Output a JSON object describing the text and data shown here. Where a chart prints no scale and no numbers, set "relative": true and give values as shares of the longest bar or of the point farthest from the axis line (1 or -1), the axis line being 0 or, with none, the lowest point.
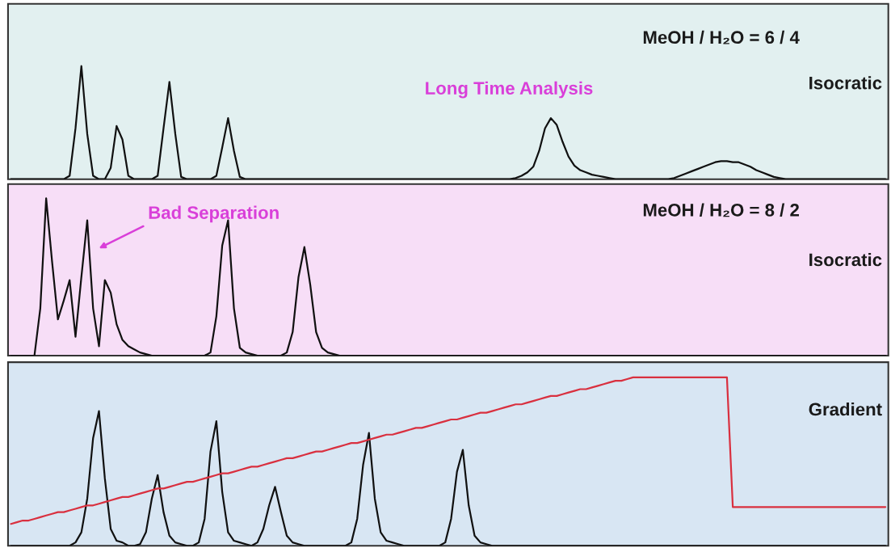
{
  "chart_data": [
    {
      "type": "line",
      "relative": true,
      "categories": [
        null,
        null,
        null,
        null,
        null,
        null,
        null,
        null,
        null,
        null,
        null,
        null,
        null,
        null,
        null,
        null,
        null,
        null,
        null,
        null,
        null,
        null,
        null,
        null,
        null,
        null,
        null,
        null,
        null,
        null,
        null,
        null,
        null,
        null,
        null,
        null,
        null,
        null,
        null,
        null,
        null,
        null,
        null,
        null,
        null,
        null,
        null,
        null,
        null,
        null,
        null,
        null,
        null,
        null,
        null,
        null,
        null,
        null,
        null,
        null,
        null,
        null,
        null,
        null,
        null,
        null,
        null,
        null,
        null,
        null,
        null,
        null,
        null,
        null,
        null,
        null,
        null,
        null,
        null,
        null,
        null,
        null,
        null,
        null,
        null,
        null,
        null,
        null,
        null,
        null,
        null,
        null,
        null,
        null,
        null,
        null,
        null,
        null,
        null,
        null,
        null,
        null,
        null,
        null,
        null,
        null,
        null,
        null,
        null,
        null,
        null,
        null,
        null,
        null,
        null,
        null,
        null,
        null,
        null,
        null,
        null,
        null,
        null,
        null,
        null,
        null,
        null,
        null,
        null,
        null,
        null,
        null,
        null,
        null,
        null,
        null,
        null,
        null,
        null,
        null,
        null,
        null,
        null,
        null,
        null,
        null,
        null,
        null,
        null,
        null
      ],
      "annotations": [
        "MeOH / H₂O = 6 / 4",
        "Long Time Analysis",
        "Isocratic"
      ],
      "series": [
        {
          "color": "#111111",
          "values": [
            0,
            0,
            0,
            0,
            0,
            0,
            0,
            0,
            0,
            0,
            0.03,
            0.45,
            1.0,
            0.4,
            0.03,
            0,
            0,
            0.1,
            0.47,
            0.35,
            0.03,
            0,
            0,
            0,
            0,
            0.03,
            0.45,
            0.86,
            0.4,
            0.02,
            0,
            0,
            0,
            0,
            0,
            0.03,
            0.28,
            0.54,
            0.25,
            0.02,
            0,
            0,
            0,
            0,
            0,
            0,
            0,
            0,
            0,
            0,
            0,
            0,
            0,
            0,
            0,
            0,
            0,
            0,
            0,
            0,
            0,
            0,
            0,
            0,
            0,
            0,
            0,
            0,
            0,
            0,
            0,
            0,
            0,
            0,
            0,
            0,
            0,
            0,
            0,
            0,
            0,
            0,
            0,
            0,
            0,
            0,
            0.01,
            0.03,
            0.06,
            0.11,
            0.25,
            0.45,
            0.54,
            0.48,
            0.33,
            0.2,
            0.12,
            0.08,
            0.06,
            0.04,
            0.03,
            0.02,
            0.01,
            0,
            0,
            0,
            0,
            0,
            0,
            0,
            0,
            0,
            0,
            0.01,
            0.03,
            0.05,
            0.07,
            0.09,
            0.11,
            0.13,
            0.15,
            0.16,
            0.16,
            0.15,
            0.15,
            0.13,
            0.11,
            0.08,
            0.06,
            0.04,
            0.02,
            0.01,
            0,
            0,
            0,
            0,
            0,
            0,
            0,
            0,
            0,
            0,
            0,
            0,
            0,
            0,
            0,
            0,
            0,
            0
          ]
        }
      ]
    },
    {
      "type": "line",
      "relative": true,
      "categories": [
        null,
        null,
        null,
        null,
        null,
        null,
        null,
        null,
        null,
        null,
        null,
        null,
        null,
        null,
        null,
        null,
        null,
        null,
        null,
        null,
        null,
        null,
        null,
        null,
        null,
        null,
        null,
        null,
        null,
        null,
        null,
        null,
        null,
        null,
        null,
        null,
        null,
        null,
        null,
        null,
        null,
        null,
        null,
        null,
        null,
        null,
        null,
        null,
        null,
        null,
        null,
        null,
        null,
        null,
        null,
        null,
        null,
        null,
        null,
        null,
        null,
        null,
        null,
        null,
        null,
        null,
        null,
        null,
        null,
        null,
        null,
        null,
        null,
        null,
        null,
        null,
        null,
        null,
        null,
        null,
        null,
        null,
        null,
        null,
        null,
        null,
        null,
        null,
        null,
        null,
        null,
        null,
        null,
        null,
        null,
        null,
        null,
        null,
        null,
        null,
        null,
        null,
        null,
        null,
        null,
        null,
        null,
        null,
        null,
        null,
        null,
        null,
        null,
        null,
        null,
        null,
        null,
        null,
        null,
        null,
        null,
        null,
        null,
        null,
        null,
        null,
        null,
        null,
        null,
        null,
        null,
        null,
        null,
        null,
        null,
        null,
        null,
        null,
        null,
        null,
        null,
        null,
        null,
        null,
        null,
        null,
        null,
        null,
        null,
        null
      ],
      "annotations": [
        "Bad Separation",
        "MeOH / H₂O = 8 / 2",
        "Isocratic"
      ],
      "series": [
        {
          "color": "#111111",
          "values": [
            0,
            0,
            0,
            0,
            0,
            0.3,
            1.0,
            0.6,
            0.23,
            0.35,
            0.48,
            0.12,
            0.5,
            0.86,
            0.3,
            0.06,
            0.48,
            0.4,
            0.2,
            0.1,
            0.06,
            0.04,
            0.02,
            0.01,
            0,
            0,
            0,
            0,
            0,
            0,
            0,
            0,
            0,
            0,
            0.02,
            0.25,
            0.7,
            0.86,
            0.3,
            0.05,
            0.02,
            0.01,
            0,
            0,
            0,
            0,
            0,
            0.02,
            0.15,
            0.5,
            0.69,
            0.45,
            0.15,
            0.05,
            0.02,
            0.01,
            0,
            0,
            0,
            0,
            0,
            0,
            0,
            0,
            0,
            0,
            0,
            0,
            0,
            0,
            0,
            0,
            0,
            0,
            0,
            0,
            0,
            0,
            0,
            0,
            0,
            0,
            0,
            0,
            0,
            0,
            0,
            0,
            0,
            0,
            0,
            0,
            0,
            0,
            0,
            0,
            0,
            0,
            0,
            0,
            0,
            0,
            0,
            0,
            0,
            0,
            0,
            0,
            0,
            0,
            0,
            0,
            0,
            0,
            0,
            0,
            0,
            0,
            0,
            0,
            0,
            0,
            0,
            0,
            0,
            0,
            0,
            0,
            0,
            0,
            0,
            0,
            0,
            0,
            0,
            0,
            0,
            0,
            0,
            0,
            0,
            0,
            0,
            0,
            0,
            0,
            0,
            0,
            0,
            0
          ]
        }
      ]
    },
    {
      "type": "line",
      "relative": true,
      "categories": [
        null,
        null,
        null,
        null,
        null,
        null,
        null,
        null,
        null,
        null,
        null,
        null,
        null,
        null,
        null,
        null,
        null,
        null,
        null,
        null,
        null,
        null,
        null,
        null,
        null,
        null,
        null,
        null,
        null,
        null,
        null,
        null,
        null,
        null,
        null,
        null,
        null,
        null,
        null,
        null,
        null,
        null,
        null,
        null,
        null,
        null,
        null,
        null,
        null,
        null,
        null,
        null,
        null,
        null,
        null,
        null,
        null,
        null,
        null,
        null,
        null,
        null,
        null,
        null,
        null,
        null,
        null,
        null,
        null,
        null,
        null,
        null,
        null,
        null,
        null,
        null,
        null,
        null,
        null,
        null,
        null,
        null,
        null,
        null,
        null,
        null,
        null,
        null,
        null,
        null,
        null,
        null,
        null,
        null,
        null,
        null,
        null,
        null,
        null,
        null,
        null,
        null,
        null,
        null,
        null,
        null,
        null,
        null,
        null,
        null,
        null,
        null,
        null,
        null,
        null,
        null,
        null,
        null,
        null,
        null,
        null,
        null,
        null,
        null,
        null,
        null,
        null,
        null,
        null,
        null,
        null,
        null,
        null,
        null,
        null,
        null,
        null,
        null,
        null,
        null,
        null,
        null,
        null,
        null,
        null,
        null,
        null,
        null,
        null,
        null
      ],
      "annotations": [
        "Gradient"
      ],
      "series": [
        {
          "color": "#111111",
          "values": [
            0,
            0,
            0,
            0,
            0,
            0,
            0,
            0,
            0,
            0,
            0,
            0.02,
            0.08,
            0.28,
            0.64,
            0.8,
            0.4,
            0.1,
            0.03,
            0.02,
            0,
            0,
            0.01,
            0.08,
            0.28,
            0.42,
            0.2,
            0.06,
            0.02,
            0.01,
            0,
            0,
            0.02,
            0.16,
            0.56,
            0.74,
            0.32,
            0.08,
            0.03,
            0.02,
            0.01,
            0,
            0.02,
            0.1,
            0.24,
            0.35,
            0.2,
            0.06,
            0.02,
            0.01,
            0,
            0,
            0,
            0,
            0,
            0,
            0,
            0,
            0.02,
            0.16,
            0.48,
            0.67,
            0.28,
            0.08,
            0.03,
            0.02,
            0.01,
            0,
            0,
            0,
            0,
            0,
            0,
            0,
            0.02,
            0.16,
            0.44,
            0.57,
            0.24,
            0.06,
            0.02,
            0.01,
            0,
            0,
            0,
            0,
            0,
            0,
            0,
            0,
            0,
            0,
            0,
            0,
            0,
            0,
            0,
            0,
            0,
            0,
            0,
            0,
            0,
            0,
            0,
            0,
            0,
            0,
            0,
            0,
            0,
            0,
            0,
            0,
            0,
            0,
            0,
            0,
            0,
            0,
            0,
            0,
            0,
            0,
            0,
            0,
            0,
            0,
            0,
            0,
            0,
            0,
            0,
            0,
            0,
            0,
            0,
            0,
            0,
            0,
            0,
            0,
            0,
            0,
            0,
            0,
            0,
            0,
            0,
            0
          ]
        },
        {
          "color": "#d9303f",
          "values": [
            0.13,
            0.14,
            0.15,
            0.15,
            0.16,
            0.17,
            0.18,
            0.19,
            0.2,
            0.2,
            0.21,
            0.22,
            0.23,
            0.24,
            0.24,
            0.25,
            0.26,
            0.27,
            0.28,
            0.29,
            0.29,
            0.3,
            0.31,
            0.32,
            0.33,
            0.34,
            0.34,
            0.35,
            0.36,
            0.37,
            0.38,
            0.38,
            0.39,
            0.4,
            0.41,
            0.42,
            0.43,
            0.43,
            0.44,
            0.45,
            0.46,
            0.47,
            0.47,
            0.48,
            0.49,
            0.5,
            0.51,
            0.52,
            0.52,
            0.53,
            0.54,
            0.55,
            0.56,
            0.56,
            0.57,
            0.58,
            0.59,
            0.6,
            0.61,
            0.61,
            0.62,
            0.63,
            0.64,
            0.65,
            0.66,
            0.66,
            0.67,
            0.68,
            0.69,
            0.7,
            0.7,
            0.71,
            0.72,
            0.73,
            0.74,
            0.75,
            0.75,
            0.76,
            0.77,
            0.78,
            0.79,
            0.79,
            0.8,
            0.81,
            0.82,
            0.83,
            0.84,
            0.84,
            0.85,
            0.86,
            0.87,
            0.88,
            0.89,
            0.89,
            0.9,
            0.91,
            0.92,
            0.93,
            0.93,
            0.94,
            0.95,
            0.96,
            0.97,
            0.98,
            0.98,
            0.99,
            1.0,
            1.0,
            1.0,
            1.0,
            1.0,
            1.0,
            1.0,
            1.0,
            1.0,
            1.0,
            1.0,
            1.0,
            1.0,
            1.0,
            1.0,
            1.0,
            1.0,
            0.23,
            0.23,
            0.23,
            0.23,
            0.23,
            0.23,
            0.23,
            0.23,
            0.23,
            0.23,
            0.23,
            0.23,
            0.23,
            0.23,
            0.23,
            0.23,
            0.23,
            0.23,
            0.23,
            0.23,
            0.23,
            0.23,
            0.23,
            0.23,
            0.23,
            0.23,
            0.23
          ]
        }
      ]
    }
  ]
}
